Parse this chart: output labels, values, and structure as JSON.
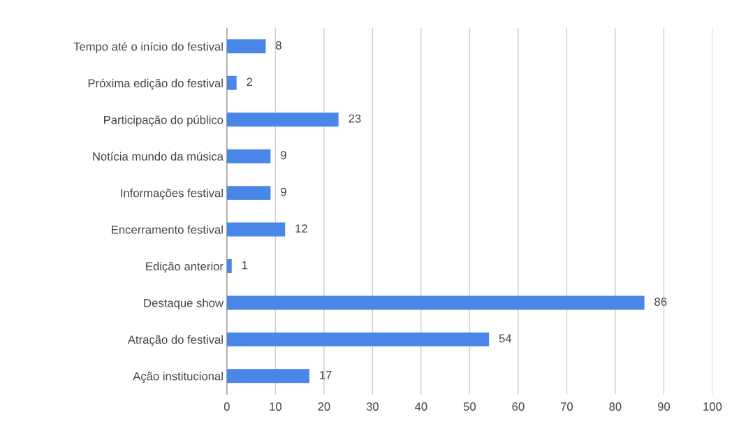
{
  "chart_data": {
    "type": "bar",
    "orientation": "horizontal",
    "categories": [
      "Tempo até o início do festival",
      "Próxima edição do festival",
      "Participação do público",
      "Notícia mundo da música",
      "Informações festival",
      "Encerramento festival",
      "Edição anterior",
      "Destaque show",
      "Atração do festival",
      "Ação institucional"
    ],
    "values": [
      8,
      2,
      23,
      9,
      9,
      12,
      1,
      86,
      54,
      17
    ],
    "color": "#4a86e8",
    "xlim": [
      0,
      100
    ],
    "xticks": [
      0,
      10,
      20,
      30,
      40,
      50,
      60,
      70,
      80,
      90,
      100
    ],
    "grid": "x",
    "data_labels": true
  }
}
